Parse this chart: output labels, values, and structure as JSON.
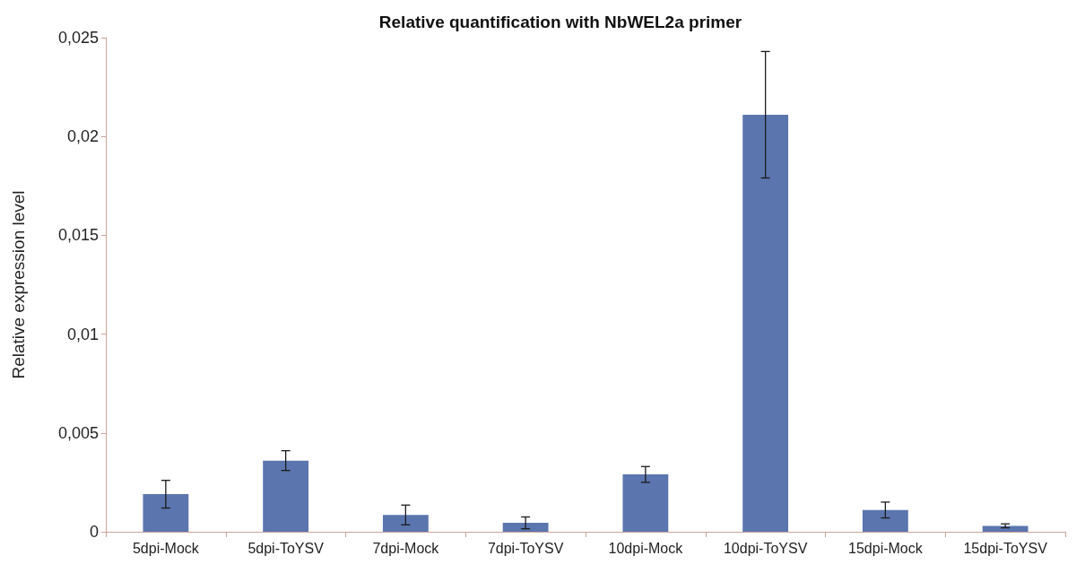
{
  "chart_data": {
    "type": "bar",
    "title": "Relative quantification with NbWEL2a primer",
    "ylabel": "Relative expression level",
    "categories": [
      "5dpi-Mock",
      "5dpi-ToYSV",
      "7dpi-Mock",
      "7dpi-ToYSV",
      "10dpi-Mock",
      "10dpi-ToYSV",
      "15dpi-Mock",
      "15dpi-ToYSV"
    ],
    "values": [
      0.0019,
      0.0036,
      0.00085,
      0.00045,
      0.0029,
      0.0211,
      0.0011,
      0.0003
    ],
    "errors": [
      0.0007,
      0.0005,
      0.0005,
      0.0003,
      0.0004,
      0.0032,
      0.0004,
      0.0001
    ],
    "color": "#5b76ae",
    "ylim": [
      0,
      0.025
    ],
    "yticks": [
      0,
      {
        "value": 0.005,
        "label": "0,005"
      },
      {
        "value": 0.01,
        "label": "0,01"
      },
      {
        "value": 0.015,
        "label": "0,015"
      },
      {
        "value": 0.02,
        "label": "0,02"
      },
      {
        "value": 0.025,
        "label": "0,025"
      }
    ],
    "grid": false
  }
}
